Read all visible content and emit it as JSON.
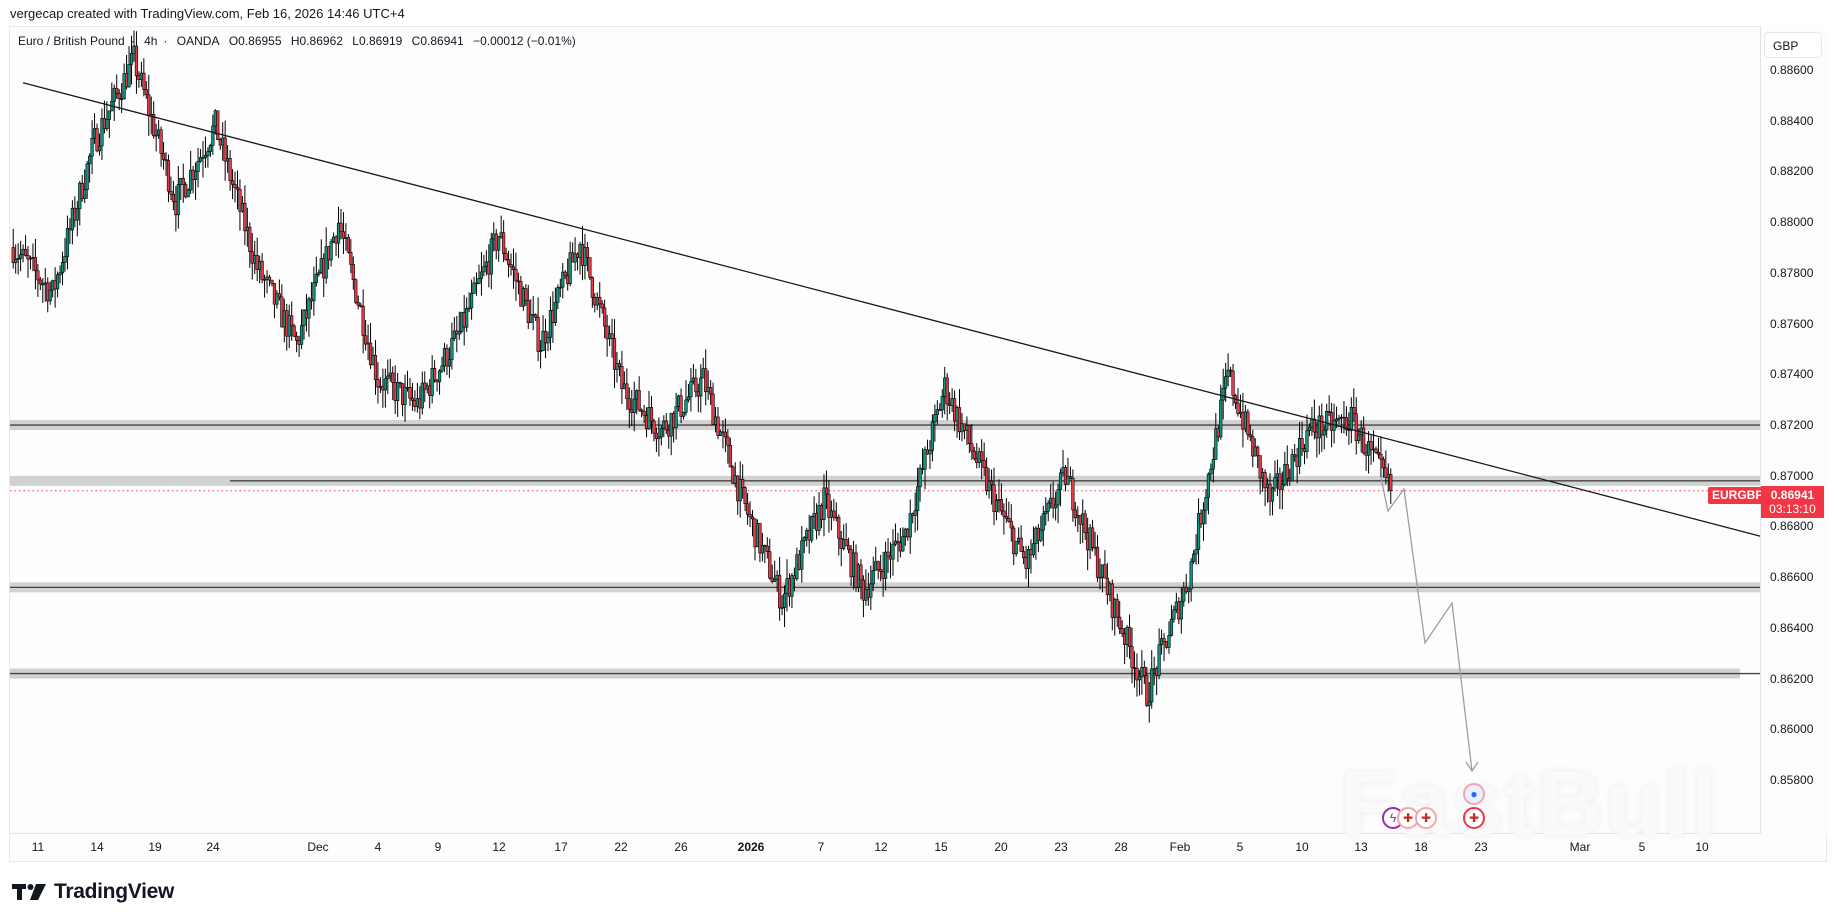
{
  "header": {
    "credit": "vergecap created with TradingView.com, Feb 16, 2026 14:46 UTC+4"
  },
  "legend": {
    "symbol_name": "Euro / British Pound",
    "interval": "4h",
    "exchange": "OANDA",
    "open": "O0.86955",
    "high": "H0.86962",
    "low": "L0.86919",
    "close": "C0.86941",
    "change": "−0.00012 (−0.01%)"
  },
  "price_axis": {
    "currency": "GBP",
    "ticks": [
      "0.88600",
      "0.88400",
      "0.88200",
      "0.88000",
      "0.87800",
      "0.87600",
      "0.87400",
      "0.87200",
      "0.87000",
      "0.86800",
      "0.86600",
      "0.86400",
      "0.86200",
      "0.86000",
      "0.85800"
    ]
  },
  "last_price": {
    "symbol": "EURGBP",
    "value": "0.86941",
    "countdown": "03:13:10",
    "color": "#f23645"
  },
  "time_axis": {
    "ticks": [
      "11",
      "14",
      "19",
      "24",
      "Dec",
      "4",
      "9",
      "12",
      "17",
      "22",
      "26",
      "2026",
      "7",
      "12",
      "15",
      "20",
      "23",
      "28",
      "Feb",
      "5",
      "10",
      "13",
      "18",
      "23",
      "Mar",
      "5",
      "10"
    ]
  },
  "branding": {
    "logo_text": "TradingView",
    "watermark": "FastBull"
  },
  "colors": {
    "up": "#089981",
    "down": "#f23645",
    "zone": "#d1d1d1",
    "trendline": "#131722",
    "projection": "#9e9e9e"
  },
  "chart_data": {
    "type": "candlestick",
    "title": "Euro / British Pound · 4h · OANDA",
    "symbol": "EURGBP",
    "timeframe": "4h",
    "xlabel": "",
    "ylabel": "GBP",
    "ylim": [
      0.857,
      0.8868
    ],
    "x_ticks": [
      "11",
      "14",
      "19",
      "24",
      "Dec",
      "4",
      "9",
      "12",
      "17",
      "22",
      "26",
      "2026",
      "7",
      "12",
      "15",
      "20",
      "23",
      "28",
      "Feb",
      "5",
      "10",
      "13",
      "18",
      "23",
      "Mar",
      "5",
      "10"
    ],
    "y_ticks": [
      0.886,
      0.884,
      0.882,
      0.88,
      0.878,
      0.876,
      0.874,
      0.872,
      0.87,
      0.868,
      0.866,
      0.864,
      0.862,
      0.86,
      0.858
    ],
    "last": {
      "open": 0.86955,
      "high": 0.86962,
      "low": 0.86919,
      "close": 0.86941,
      "change": -0.00012,
      "change_pct": -0.01
    },
    "approx_swing_path": [
      {
        "date": "Nov 10",
        "price": 0.879
      },
      {
        "date": "Nov 11",
        "price": 0.8772
      },
      {
        "date": "Nov 13",
        "price": 0.8832
      },
      {
        "date": "Nov 14",
        "price": 0.8864
      },
      {
        "date": "Nov 17",
        "price": 0.8808
      },
      {
        "date": "Nov 19",
        "price": 0.8838
      },
      {
        "date": "Nov 24",
        "price": 0.8782
      },
      {
        "date": "Nov 26",
        "price": 0.8752
      },
      {
        "date": "Dec 2",
        "price": 0.88
      },
      {
        "date": "Dec 4",
        "price": 0.8738
      },
      {
        "date": "Dec 9",
        "price": 0.8728
      },
      {
        "date": "Dec 11",
        "price": 0.8756
      },
      {
        "date": "Dec 16",
        "price": 0.8795
      },
      {
        "date": "Dec 17",
        "price": 0.8752
      },
      {
        "date": "Dec 18",
        "price": 0.8792
      },
      {
        "date": "Dec 22",
        "price": 0.8735
      },
      {
        "date": "Dec 26",
        "price": 0.8718
      },
      {
        "date": "Dec 31",
        "price": 0.8738
      },
      {
        "date": "Jan 2",
        "price": 0.869
      },
      {
        "date": "Jan 5",
        "price": 0.8651
      },
      {
        "date": "Jan 8",
        "price": 0.869
      },
      {
        "date": "Jan 13",
        "price": 0.8655
      },
      {
        "date": "Jan 16",
        "price": 0.8677
      },
      {
        "date": "Jan 20",
        "price": 0.8735
      },
      {
        "date": "Jan 23",
        "price": 0.8697
      },
      {
        "date": "Jan 26",
        "price": 0.8665
      },
      {
        "date": "Jan 28",
        "price": 0.87
      },
      {
        "date": "Feb 2",
        "price": 0.8655
      },
      {
        "date": "Feb 4",
        "price": 0.8614
      },
      {
        "date": "Feb 6",
        "price": 0.866
      },
      {
        "date": "Feb 9",
        "price": 0.874
      },
      {
        "date": "Feb 10",
        "price": 0.869
      },
      {
        "date": "Feb 12",
        "price": 0.8718
      },
      {
        "date": "Feb 13",
        "price": 0.8722
      },
      {
        "date": "Feb 16",
        "price": 0.8694
      }
    ],
    "annotations": [
      {
        "type": "trendline",
        "from": {
          "date": "Nov 10",
          "price": 0.8853
        },
        "to": {
          "date": "Mar 12",
          "price": 0.8677
        },
        "label": "descending resistance"
      },
      {
        "type": "horizontal_zone",
        "price": 0.872,
        "label": "resistance zone"
      },
      {
        "type": "horizontal_zone",
        "price": 0.8698,
        "label": "support/resistance zone"
      },
      {
        "type": "horizontal_zone",
        "price": 0.8656,
        "label": "support zone"
      },
      {
        "type": "horizontal_zone",
        "price": 0.8622,
        "label": "support zone"
      },
      {
        "type": "projection_path",
        "points": [
          0.8694,
          0.8685,
          0.8698,
          0.8637,
          0.8652,
          0.8585
        ],
        "label": "projected bearish move"
      }
    ]
  }
}
